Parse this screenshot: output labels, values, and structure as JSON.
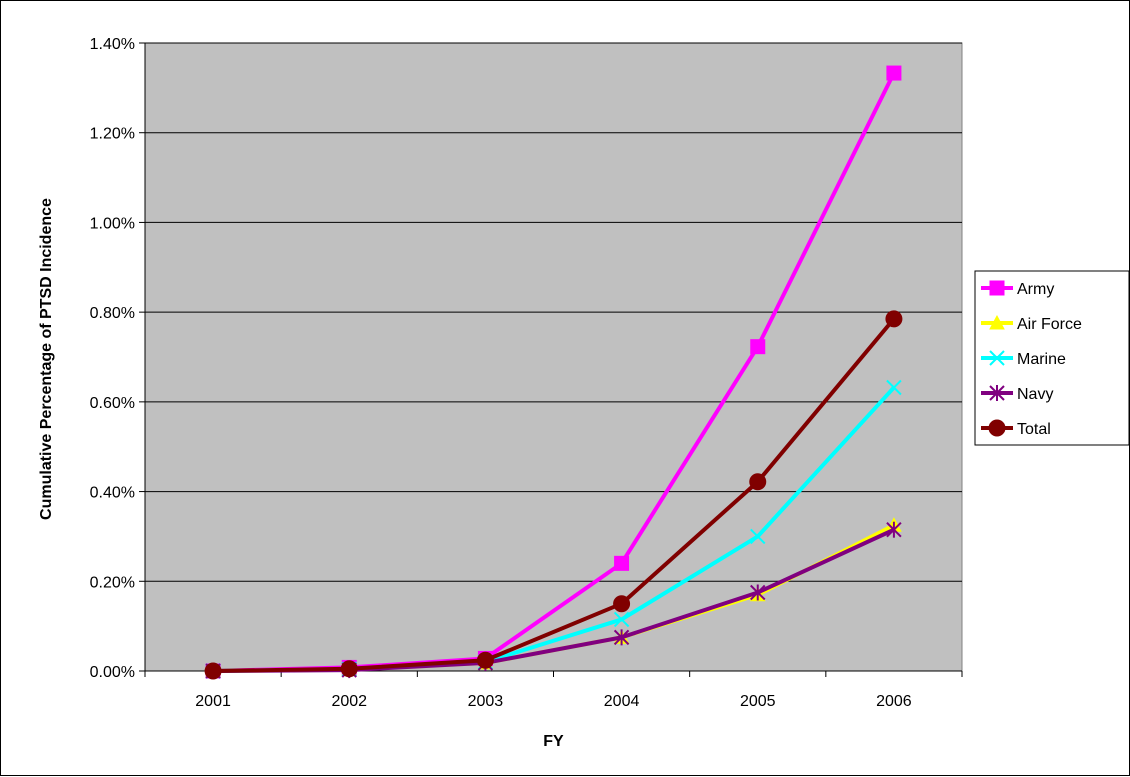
{
  "chart_data": {
    "type": "line",
    "title": "",
    "xlabel": "FY",
    "ylabel": "Cumulative Percentage of PTSD Incidence",
    "categories": [
      "2001",
      "2002",
      "2003",
      "2004",
      "2005",
      "2006"
    ],
    "ylim": [
      0,
      1.4
    ],
    "yticks": [
      0,
      0.2,
      0.4,
      0.6,
      0.8,
      1.0,
      1.2,
      1.4
    ],
    "ytick_labels": [
      "0.00%",
      "0.20%",
      "0.40%",
      "0.60%",
      "0.80%",
      "1.00%",
      "1.20%",
      "1.40%"
    ],
    "y_unit": "percent",
    "grid": "horizontal",
    "plot_background": "#c0c0c0",
    "legend_position": "right",
    "series": [
      {
        "name": "Army",
        "color": "#ff00ff",
        "marker": "square",
        "values": [
          0.0,
          0.008,
          0.028,
          0.24,
          0.723,
          1.333
        ]
      },
      {
        "name": "Air Force",
        "color": "#ffff00",
        "marker": "triangle",
        "values": [
          0.0,
          0.003,
          0.018,
          0.075,
          0.17,
          0.325
        ]
      },
      {
        "name": "Marine",
        "color": "#00ffff",
        "marker": "x",
        "values": [
          0.0,
          0.004,
          0.02,
          0.115,
          0.3,
          0.632
        ]
      },
      {
        "name": "Navy",
        "color": "#800080",
        "marker": "asterisk",
        "values": [
          0.0,
          0.002,
          0.018,
          0.075,
          0.175,
          0.315
        ]
      },
      {
        "name": "Total",
        "color": "#800000",
        "marker": "circle",
        "values": [
          0.0,
          0.005,
          0.024,
          0.15,
          0.422,
          0.785
        ]
      }
    ]
  }
}
